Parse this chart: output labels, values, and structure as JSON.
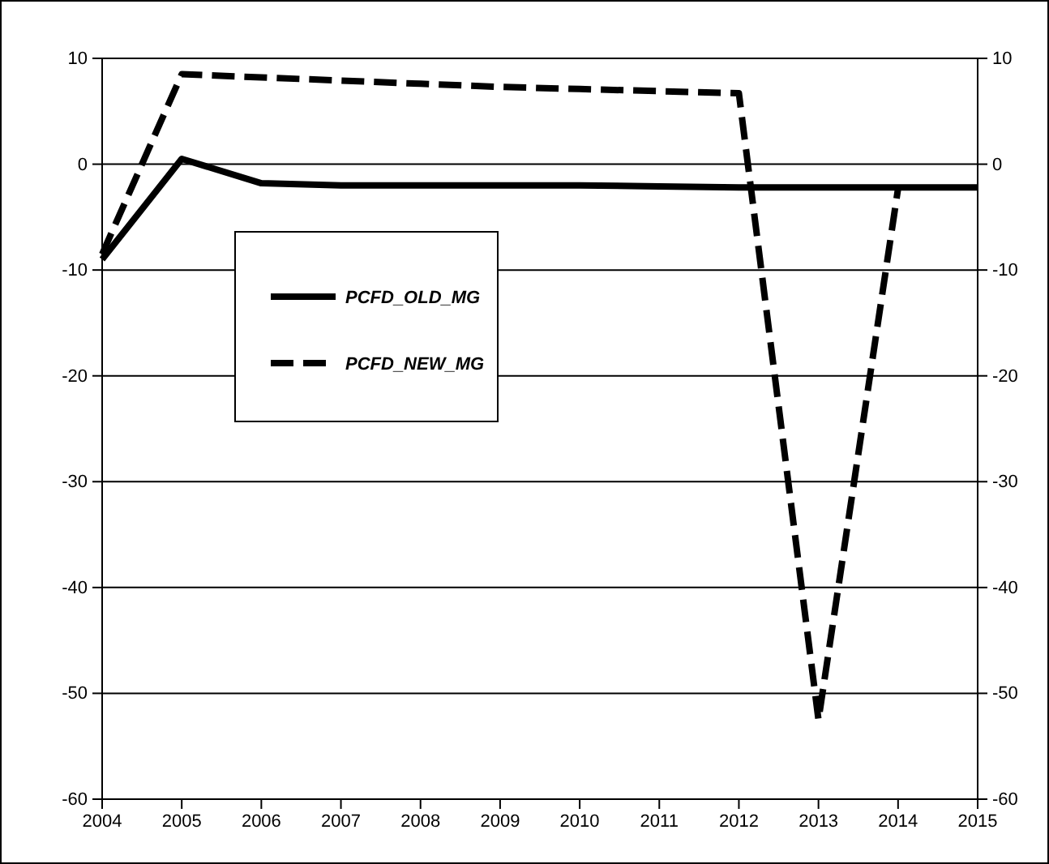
{
  "chart_data": {
    "type": "line",
    "x": [
      2004,
      2005,
      2006,
      2007,
      2008,
      2009,
      2010,
      2011,
      2012,
      2013,
      2014,
      2015
    ],
    "series": [
      {
        "name": "PCFD_OLD_MG",
        "color": "#000000",
        "line_style": "solid",
        "values": [
          -9,
          0.5,
          -1.8,
          -2,
          -2,
          -2,
          -2,
          -2.1,
          -2.2,
          -2.2,
          -2.2,
          -2.2
        ]
      },
      {
        "name": "PCFD_NEW_MG",
        "color": "#000000",
        "line_style": "dashed",
        "values": [
          -8.5,
          8.5,
          8.2,
          7.9,
          7.6,
          7.3,
          7.1,
          6.9,
          6.7,
          -52.5,
          -2.3,
          null
        ]
      }
    ],
    "xlim": [
      2004,
      2015
    ],
    "xticks": [
      2004,
      2005,
      2006,
      2007,
      2008,
      2009,
      2010,
      2011,
      2012,
      2013,
      2014,
      2015
    ],
    "ylim": [
      -60,
      10
    ],
    "yticks": [
      -60,
      -50,
      -40,
      -30,
      -20,
      -10,
      0,
      10
    ],
    "y2lim": [
      -60,
      10
    ],
    "y2ticks": [
      -60,
      -50,
      -40,
      -30,
      -20,
      -10,
      0,
      10
    ],
    "grid": "y",
    "legend": "top left",
    "marker": "none"
  }
}
